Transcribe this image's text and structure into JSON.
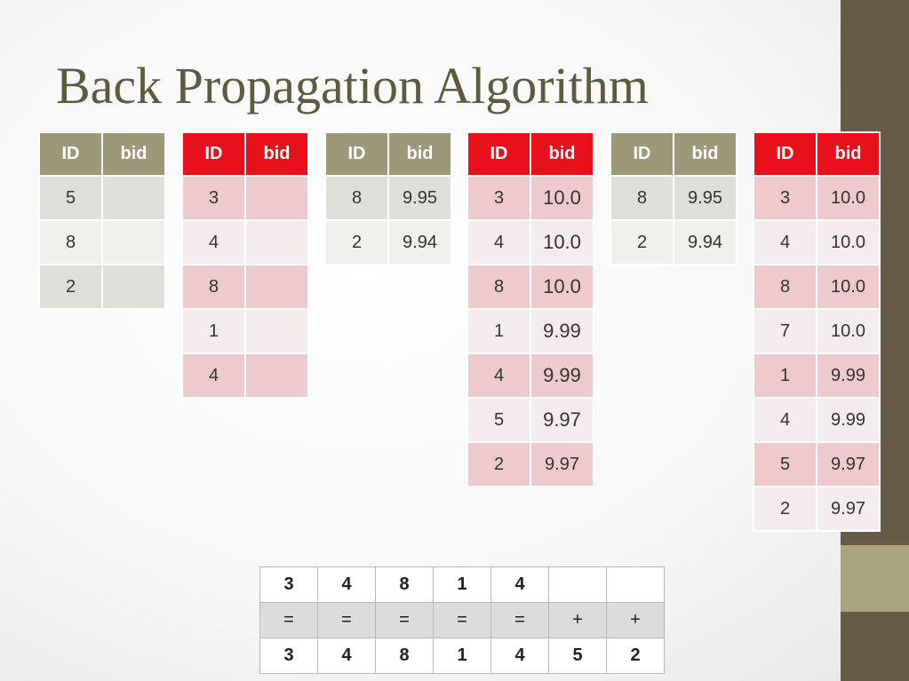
{
  "title": "Back Propagation Algorithm",
  "tables": [
    {
      "header": [
        "ID",
        "bid"
      ],
      "rows": [
        [
          "5",
          ""
        ],
        [
          "8",
          ""
        ],
        [
          "2",
          ""
        ]
      ]
    },
    {
      "header": [
        "ID",
        "bid"
      ],
      "rows": [
        [
          "3",
          ""
        ],
        [
          "4",
          ""
        ],
        [
          "8",
          ""
        ],
        [
          "1",
          ""
        ],
        [
          "4",
          ""
        ]
      ]
    },
    {
      "header": [
        "ID",
        "bid"
      ],
      "rows": [
        [
          "8",
          "9.95"
        ],
        [
          "2",
          "9.94"
        ]
      ]
    },
    {
      "header": [
        "ID",
        "bid"
      ],
      "rows": [
        [
          "3",
          "10.0"
        ],
        [
          "4",
          "10.0"
        ],
        [
          "8",
          "10.0"
        ],
        [
          "1",
          "9.99"
        ],
        [
          "4",
          "9.99"
        ],
        [
          "5",
          "9.97"
        ],
        [
          "2",
          "9.97"
        ]
      ]
    },
    {
      "header": [
        "ID",
        "bid"
      ],
      "rows": [
        [
          "8",
          "9.95"
        ],
        [
          "2",
          "9.94"
        ]
      ]
    },
    {
      "header": [
        "ID",
        "bid"
      ],
      "rows": [
        [
          "3",
          "10.0"
        ],
        [
          "4",
          "10.0"
        ],
        [
          "8",
          "10.0"
        ],
        [
          "7",
          "10.0"
        ],
        [
          "1",
          "9.99"
        ],
        [
          "4",
          "9.99"
        ],
        [
          "5",
          "9.97"
        ],
        [
          "2",
          "9.97"
        ]
      ]
    }
  ],
  "bottom_table": {
    "rows": [
      [
        "3",
        "4",
        "8",
        "1",
        "4",
        "",
        ""
      ],
      [
        "=",
        "=",
        "=",
        "=",
        "=",
        "+",
        "+"
      ],
      [
        "3",
        "4",
        "8",
        "1",
        "4",
        "5",
        "2"
      ]
    ]
  },
  "colors": {
    "olive_header": "#9c9878",
    "red_header": "#e8101a",
    "title": "#5e5a3e",
    "side_bar": "#655b46"
  }
}
